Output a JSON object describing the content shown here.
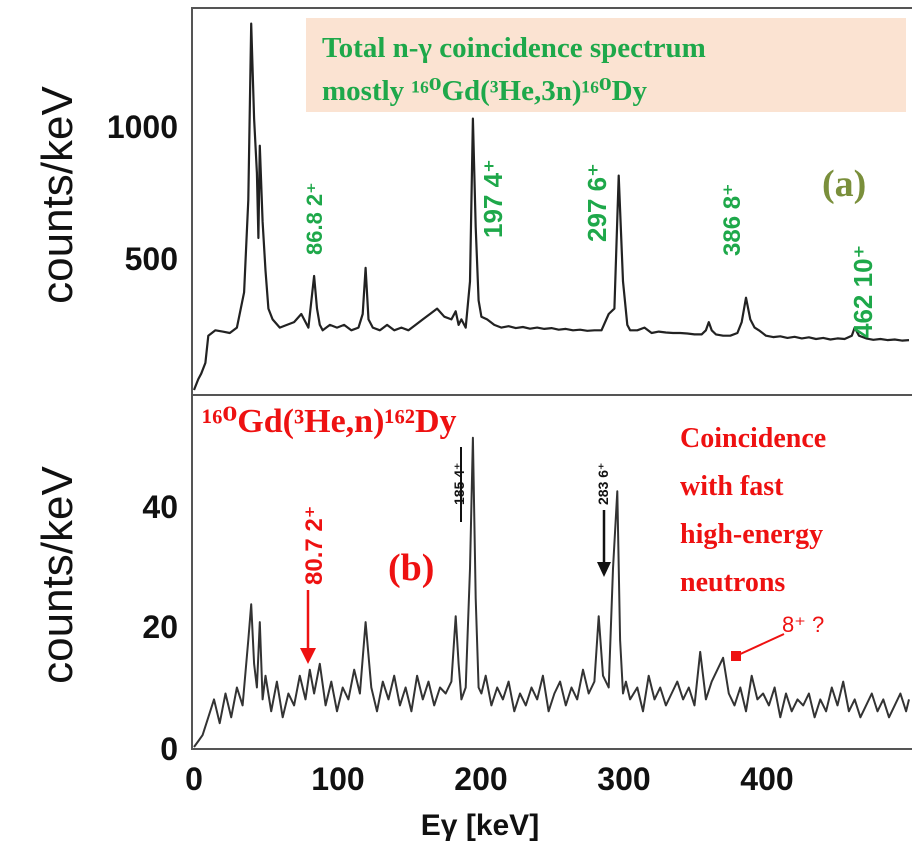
{
  "chart_data": [
    {
      "type": "line",
      "panel_label": "(a)",
      "ylabel": "counts/keV",
      "annotation_lines": [
        "Total n-γ coincidence spectrum",
        "mostly ¹⁶⁰Gd(³He,3n)¹⁶⁰Dy"
      ],
      "xlim": [
        0,
        500
      ],
      "ylim": [
        0,
        1400
      ],
      "y_ticks": [
        500,
        1000
      ],
      "peak_labels": [
        "86.8 2⁺",
        "197 4⁺",
        "297 6⁺",
        "386 8⁺",
        "462 10⁺"
      ],
      "series": [
        {
          "x": [
            0,
            3,
            5,
            8,
            10,
            15,
            20,
            25,
            30,
            35,
            38,
            40,
            42,
            44,
            45,
            46,
            48,
            50,
            52,
            55,
            60,
            65,
            70,
            75,
            80,
            84,
            86,
            88,
            90,
            95,
            100,
            105,
            110,
            115,
            118,
            120,
            122,
            125,
            130,
            135,
            140,
            145,
            150,
            155,
            160,
            165,
            170,
            175,
            180,
            183,
            185,
            187,
            190,
            193,
            195,
            197,
            199,
            201,
            205,
            210,
            215,
            220,
            225,
            230,
            235,
            240,
            245,
            250,
            255,
            260,
            265,
            270,
            275,
            280,
            285,
            290,
            294,
            297,
            300,
            303,
            305,
            310,
            315,
            320,
            325,
            330,
            335,
            340,
            345,
            350,
            355,
            358,
            360,
            362,
            365,
            370,
            375,
            380,
            383,
            386,
            389,
            392,
            395,
            400,
            405,
            410,
            415,
            420,
            425,
            430,
            435,
            440,
            445,
            450,
            455,
            460,
            462,
            465,
            470,
            475,
            480,
            485,
            490,
            495,
            500
          ],
          "y": [
            0,
            40,
            60,
            100,
            200,
            220,
            215,
            210,
            230,
            360,
            700,
            1350,
            1000,
            800,
            560,
            900,
            620,
            440,
            300,
            260,
            230,
            240,
            250,
            280,
            230,
            420,
            300,
            240,
            220,
            240,
            230,
            240,
            220,
            230,
            280,
            450,
            260,
            230,
            220,
            240,
            220,
            230,
            220,
            240,
            260,
            280,
            300,
            270,
            260,
            290,
            240,
            260,
            230,
            400,
            1000,
            600,
            330,
            270,
            260,
            240,
            230,
            235,
            228,
            232,
            226,
            230,
            225,
            228,
            222,
            225,
            220,
            222,
            218,
            220,
            220,
            280,
            300,
            790,
            400,
            240,
            220,
            220,
            230,
            210,
            215,
            212,
            210,
            210,
            208,
            205,
            205,
            220,
            250,
            220,
            205,
            200,
            200,
            210,
            250,
            340,
            260,
            230,
            220,
            200,
            195,
            198,
            192,
            196,
            190,
            194,
            188,
            192,
            186,
            190,
            188,
            200,
            230,
            200,
            190,
            185,
            188,
            184,
            186,
            182,
            184
          ]
        }
      ]
    },
    {
      "type": "line",
      "panel_label": "(b)",
      "ylabel": "counts/keV",
      "xlabel": "Eγ [keV]",
      "reaction_label": "¹⁶⁰Gd(³He,n)¹⁶²Dy",
      "annotation_lines": [
        "Coincidence",
        "with fast",
        "high-energy",
        "neutrons"
      ],
      "xlim": [
        0,
        500
      ],
      "ylim": [
        0,
        55
      ],
      "x_ticks": [
        0,
        100,
        200,
        300,
        400
      ],
      "y_ticks": [
        0,
        20,
        40
      ],
      "peak_labels": [
        "80.7 2⁺",
        "185 4⁺",
        "283 6⁺",
        "8⁺ ?"
      ],
      "series": [
        {
          "x": [
            0,
            3,
            6,
            10,
            14,
            18,
            22,
            26,
            30,
            34,
            38,
            40,
            42,
            44,
            46,
            48,
            50,
            54,
            58,
            62,
            66,
            70,
            74,
            78,
            81,
            84,
            88,
            92,
            96,
            100,
            104,
            108,
            112,
            116,
            120,
            124,
            128,
            132,
            136,
            140,
            144,
            148,
            152,
            156,
            160,
            164,
            168,
            172,
            176,
            180,
            183,
            185,
            187,
            190,
            193,
            195,
            197,
            199,
            201,
            204,
            208,
            212,
            216,
            220,
            224,
            228,
            232,
            236,
            240,
            244,
            248,
            252,
            256,
            260,
            264,
            268,
            272,
            276,
            280,
            283,
            286,
            290,
            293,
            296,
            298,
            300,
            302,
            305,
            310,
            314,
            318,
            322,
            326,
            330,
            334,
            338,
            342,
            346,
            350,
            354,
            358,
            362,
            366,
            370,
            374,
            378,
            382,
            386,
            390,
            394,
            398,
            402,
            406,
            410,
            414,
            418,
            422,
            426,
            430,
            434,
            438,
            442,
            446,
            450,
            454,
            458,
            462,
            466,
            470,
            474,
            478,
            482,
            486,
            490,
            494,
            498,
            500
          ],
          "y": [
            0,
            1,
            2,
            5,
            8,
            4,
            9,
            5,
            10,
            7,
            18,
            24,
            14,
            10,
            21,
            8,
            12,
            6,
            11,
            5,
            9,
            7,
            12,
            8,
            13,
            9,
            14,
            7,
            11,
            6,
            10,
            8,
            13,
            9,
            21,
            10,
            6,
            11,
            8,
            12,
            7,
            10,
            6,
            12,
            8,
            11,
            7,
            10,
            9,
            11,
            22,
            14,
            8,
            10,
            30,
            52,
            25,
            10,
            9,
            12,
            7,
            10,
            8,
            11,
            6,
            9,
            7,
            10,
            8,
            12,
            6,
            9,
            11,
            7,
            10,
            8,
            13,
            9,
            11,
            22,
            12,
            10,
            30,
            43,
            18,
            9,
            11,
            8,
            10,
            6,
            12,
            8,
            10,
            7,
            9,
            11,
            8,
            10,
            7,
            16,
            8,
            11,
            13,
            15,
            9,
            7,
            10,
            6,
            12,
            8,
            9,
            7,
            10,
            5,
            9,
            6,
            8,
            7,
            9,
            5,
            8,
            6,
            10,
            7,
            11,
            6,
            8,
            5,
            7,
            9,
            6,
            8,
            5,
            7,
            9,
            6,
            8
          ]
        }
      ]
    }
  ],
  "colors": {
    "green": "#1ea84a",
    "red": "#ee1111",
    "olive": "#7a8f3b",
    "annotation_box": "#fbe3d2",
    "trace": "#222222"
  }
}
